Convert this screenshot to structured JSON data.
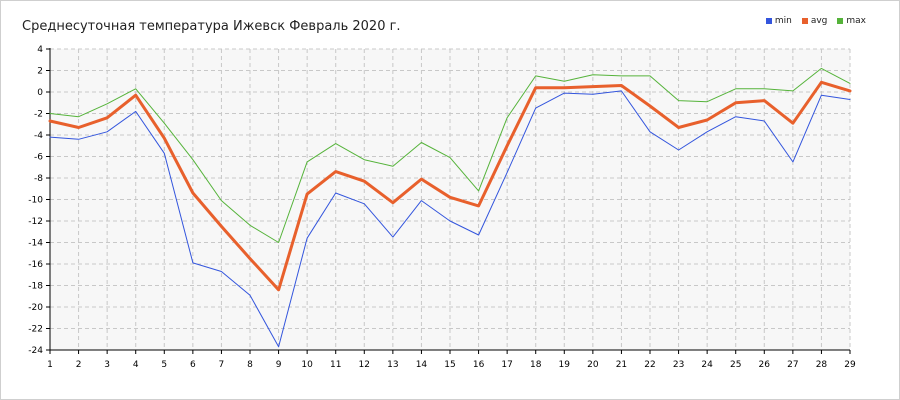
{
  "chart_data": {
    "type": "line",
    "title": "Среднесуточная температура Ижевск  Февраль 2020 г.",
    "x": [
      1,
      2,
      3,
      4,
      5,
      6,
      7,
      8,
      9,
      10,
      11,
      12,
      13,
      14,
      15,
      16,
      17,
      18,
      19,
      20,
      21,
      22,
      23,
      24,
      25,
      26,
      27,
      28,
      29
    ],
    "xticks": [
      "1",
      "2",
      "3",
      "4",
      "5",
      "6",
      "7",
      "8",
      "9",
      "10",
      "11",
      "12",
      "13",
      "14",
      "15",
      "16",
      "17",
      "18",
      "19",
      "20",
      "21",
      "22",
      "23",
      "24",
      "25",
      "26",
      "27",
      "28",
      "29"
    ],
    "ylim": [
      -24,
      4
    ],
    "yticks": [
      "4",
      "2",
      "0",
      "-2",
      "-4",
      "-6",
      "-8",
      "-10",
      "-12",
      "-14",
      "-16",
      "-18",
      "-20",
      "-22",
      "-24"
    ],
    "grid": true,
    "legend_position": "top-right",
    "series": [
      {
        "name": "min",
        "color": "#3355dd",
        "values": [
          -4.2,
          -4.4,
          -3.7,
          -1.8,
          -5.7,
          -15.9,
          -16.7,
          -18.9,
          -23.7,
          -13.6,
          -9.4,
          -10.4,
          -13.5,
          -10.1,
          -12.0,
          -13.3,
          -7.5,
          -1.5,
          -0.1,
          -0.2,
          0.1,
          -3.7,
          -5.4,
          -3.7,
          -2.3,
          -2.7,
          -6.5,
          -0.3,
          -0.7
        ]
      },
      {
        "name": "avg",
        "color": "#e8602c",
        "values": [
          -2.7,
          -3.3,
          -2.4,
          -0.3,
          -4.3,
          -9.4,
          -12.5,
          -15.5,
          -18.4,
          -9.5,
          -7.4,
          -8.3,
          -10.3,
          -8.1,
          -9.8,
          -10.6,
          -5.0,
          0.4,
          0.4,
          0.5,
          0.6,
          -1.3,
          -3.3,
          -2.6,
          -1.0,
          -0.8,
          -2.9,
          0.9,
          0.1
        ]
      },
      {
        "name": "max",
        "color": "#55b33a",
        "values": [
          -2.0,
          -2.3,
          -1.1,
          0.3,
          -2.9,
          -6.3,
          -10.1,
          -12.4,
          -14.0,
          -6.5,
          -4.8,
          -6.3,
          -6.9,
          -4.7,
          -6.1,
          -9.2,
          -2.4,
          1.5,
          1.0,
          1.6,
          1.5,
          1.5,
          -0.8,
          -0.9,
          0.3,
          0.3,
          0.1,
          2.2,
          0.8
        ]
      }
    ]
  }
}
